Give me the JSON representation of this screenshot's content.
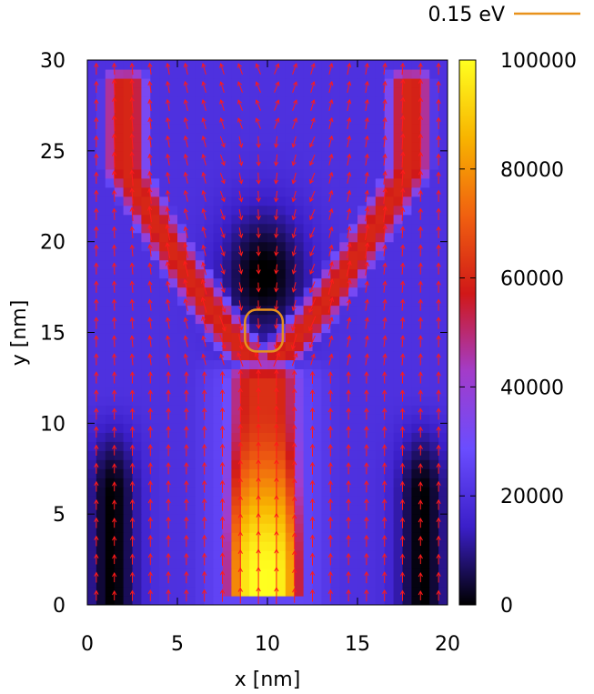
{
  "chart_data": {
    "type": "heatmap",
    "title": "",
    "xlabel": "x [nm]",
    "ylabel": "y [nm]",
    "xlim": [
      0,
      20
    ],
    "ylim": [
      0,
      30
    ],
    "x_ticks": [
      "0",
      "5",
      "10",
      "15",
      "20"
    ],
    "y_ticks": [
      "0",
      "5",
      "10",
      "15",
      "20",
      "25",
      "30"
    ],
    "colorbar": {
      "min": 0,
      "max": 100000,
      "ticks": [
        "0",
        "20000",
        "40000",
        "60000",
        "80000",
        "100000"
      ],
      "colormap": [
        "#000000",
        "#3b1fc9",
        "#6a4dff",
        "#a33cc9",
        "#d01818",
        "#f06010",
        "#f8b400",
        "#ffff20"
      ]
    },
    "legend": {
      "position": "top-right",
      "entries": [
        {
          "label": "0.15 eV",
          "color": "#e8921c"
        }
      ]
    },
    "contour": {
      "label": "0.15 eV",
      "center": [
        9.8,
        15.1
      ],
      "half_width": 1.05,
      "half_height": 1.15
    },
    "overlay": "current density vector field (red arrows)",
    "arrow_color": "#ff1a1a",
    "structure": {
      "stem_x": [
        6.2,
        13.8
      ],
      "stem_y": [
        0.5,
        13.0
      ],
      "left_arm_top_x": [
        1.0,
        3.2
      ],
      "right_arm_top_x": [
        16.8,
        19.0
      ],
      "arm_top_y": 29.0,
      "peak_value": 100000,
      "peak_location": [
        9.8,
        2.0
      ]
    }
  }
}
